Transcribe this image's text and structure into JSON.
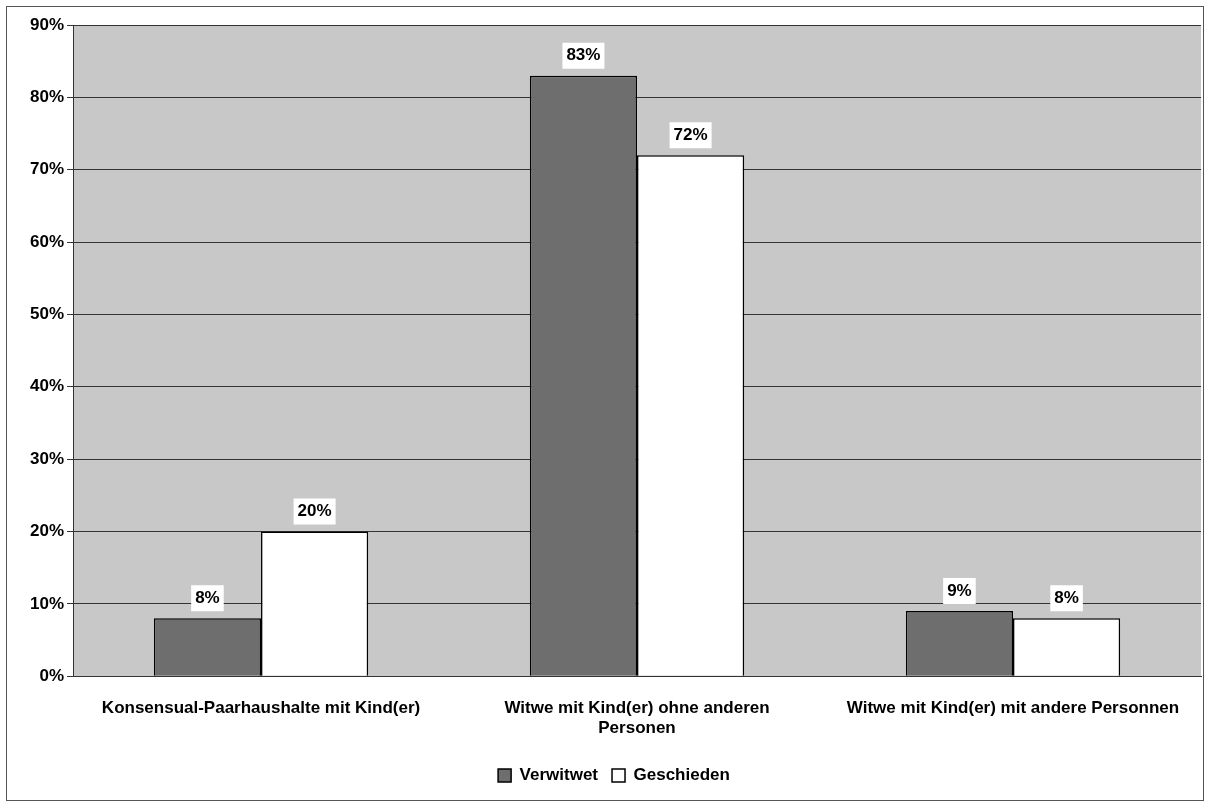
{
  "chart_data": {
    "type": "bar",
    "categories": [
      "Konsensual-Paarhaushalte mit Kind(er)",
      "Witwe mit Kind(er) ohne anderen Personen",
      "Witwe mit Kind(er) mit andere Personnen"
    ],
    "series": [
      {
        "name": "Verwitwet",
        "color": "#6e6e6e",
        "values": [
          8,
          83,
          9
        ],
        "value_labels": [
          "8%",
          "83%",
          "9%"
        ]
      },
      {
        "name": "Geschieden",
        "color": "#ffffff",
        "values": [
          20,
          72,
          8
        ],
        "value_labels": [
          "20%",
          "72%",
          "8%"
        ]
      }
    ],
    "ylim": [
      0,
      90
    ],
    "yticks": [
      {
        "value": 0,
        "label": "0%"
      },
      {
        "value": 10,
        "label": "10%"
      },
      {
        "value": 20,
        "label": "20%"
      },
      {
        "value": 30,
        "label": "30%"
      },
      {
        "value": 40,
        "label": "40%"
      },
      {
        "value": 50,
        "label": "50%"
      },
      {
        "value": 60,
        "label": "60%"
      },
      {
        "value": 70,
        "label": "70%"
      },
      {
        "value": 80,
        "label": "80%"
      },
      {
        "value": 90,
        "label": "90%"
      }
    ],
    "grid": "y",
    "legend": "bottom"
  }
}
